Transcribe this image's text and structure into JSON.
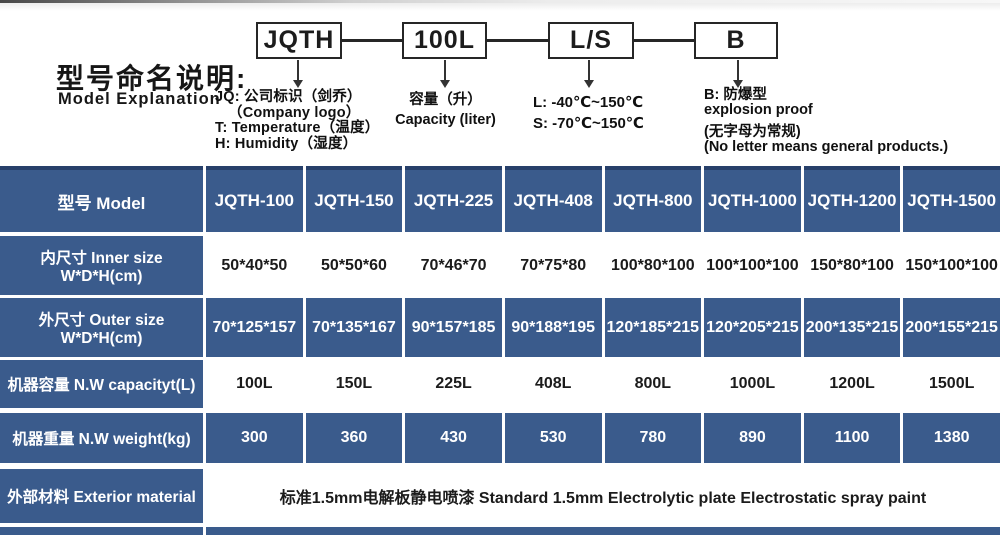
{
  "diagram": {
    "title_zh": "型号命名说明:",
    "title_en": "Model Explanation",
    "boxes": [
      "JQTH",
      "100L",
      "L/S",
      "B"
    ],
    "jqth_notes": [
      "JQ: 公司标识（剑乔）",
      "（Company logo）",
      "T: Temperature（温度）",
      "H: Humidity（湿度）"
    ],
    "capacity_notes": [
      "容量（升）",
      "Capacity (liter)"
    ],
    "ls_notes": [
      "L: -40℃~150℃",
      "S: -70℃~150℃"
    ],
    "b_notes": [
      "B: 防爆型",
      "explosion proof",
      "(无字母为常规)",
      "(No letter means general products.)"
    ]
  },
  "table": {
    "header_label": "型号 Model",
    "models": [
      "JQTH-100",
      "JQTH-150",
      "JQTH-225",
      "JQTH-408",
      "JQTH-800",
      "JQTH-1000",
      "JQTH-1200",
      "JQTH-1500"
    ],
    "rows": [
      {
        "label": "内尺寸 Inner size W*D*H(cm)",
        "values": [
          "50*40*50",
          "50*50*60",
          "70*46*70",
          "70*75*80",
          "100*80*100",
          "100*100*100",
          "150*80*100",
          "150*100*100"
        ]
      },
      {
        "label": "外尺寸 Outer size W*D*H(cm)",
        "values": [
          "70*125*157",
          "70*135*167",
          "90*157*185",
          "90*188*195",
          "120*185*215",
          "120*205*215",
          "200*135*215",
          "200*155*215"
        ]
      },
      {
        "label": "机器容量 N.W capacityt(L)",
        "values": [
          "100L",
          "150L",
          "225L",
          "408L",
          "800L",
          "1000L",
          "1200L",
          "1500L"
        ]
      },
      {
        "label": "机器重量 N.W weight(kg)",
        "values": [
          "300",
          "360",
          "430",
          "530",
          "780",
          "890",
          "1100",
          "1380"
        ]
      },
      {
        "label": "外部材料 Exterior material",
        "span_value": "标准1.5mm电解板静电喷漆  Standard 1.5mm Electrolytic plate Electrostatic spray paint"
      }
    ]
  },
  "colors": {
    "table_blue": "#3a5b8c",
    "header_top_edge": "#27406a",
    "line_dark": "#262626"
  }
}
